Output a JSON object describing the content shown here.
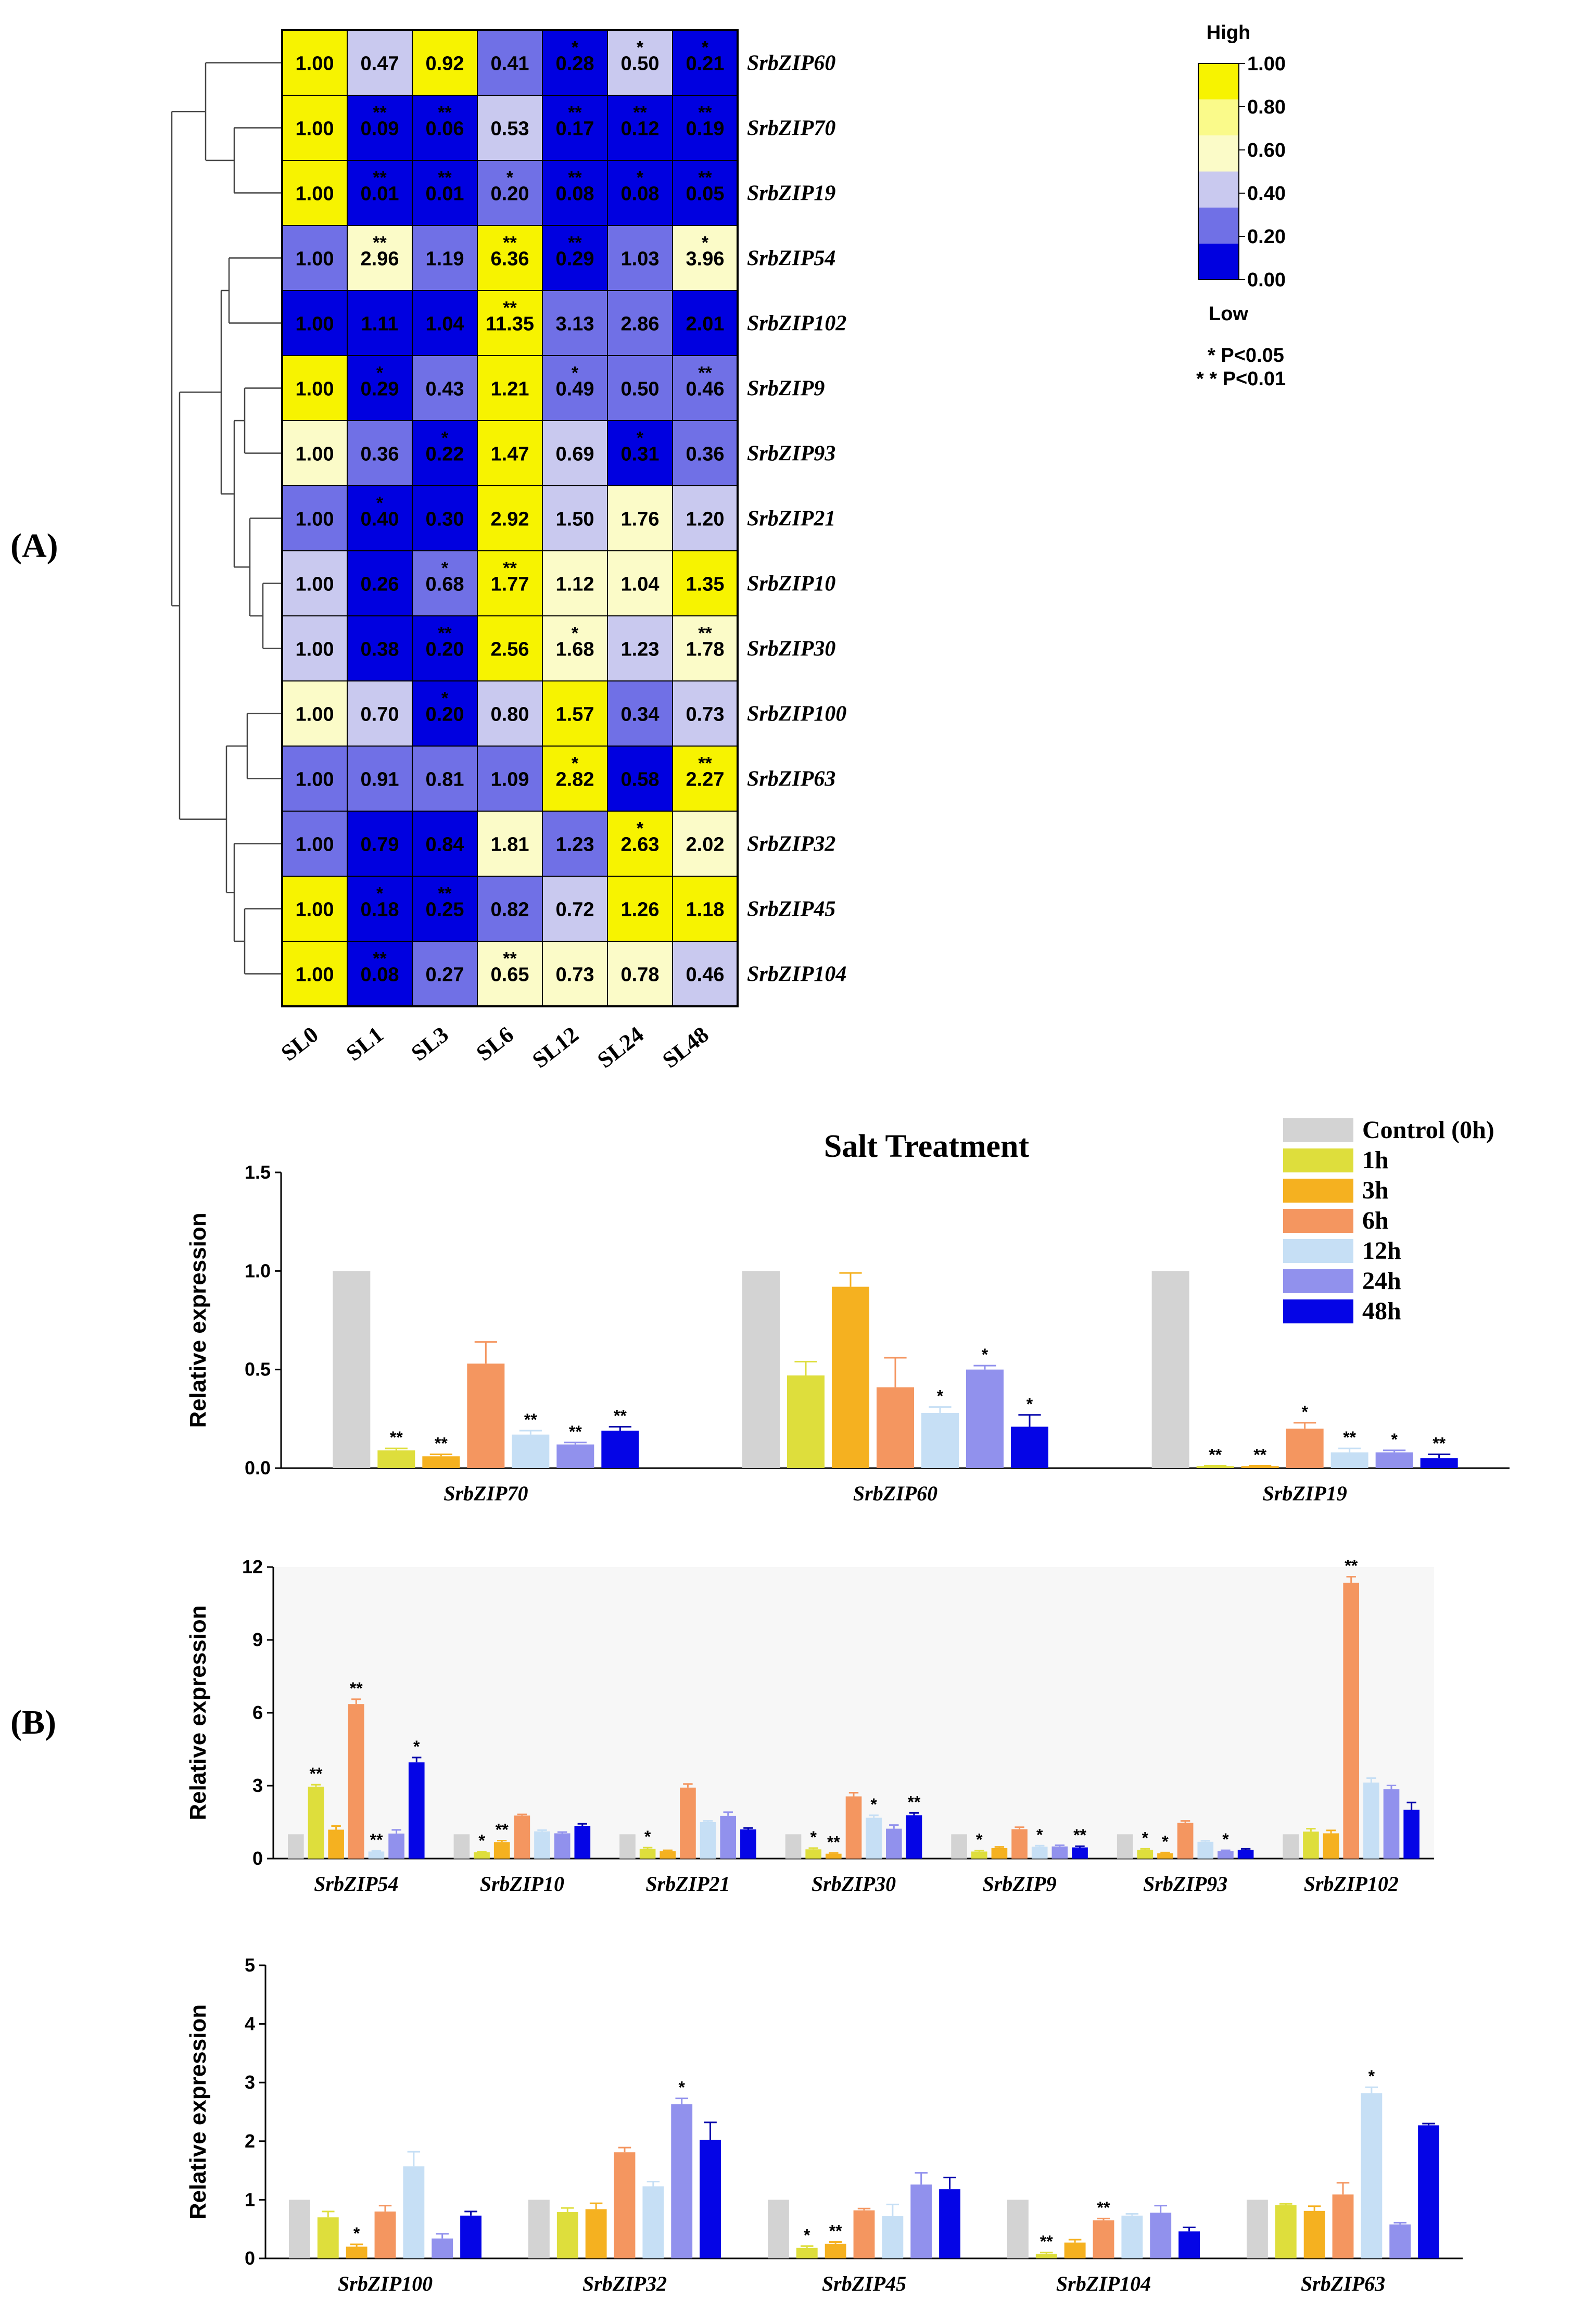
{
  "panels": {
    "a": "(A)",
    "b": "(B)"
  },
  "heatmap": {
    "columns": [
      "SL0",
      "SL1",
      "SL3",
      "SL6",
      "SL12",
      "SL24",
      "SL48"
    ],
    "rows": [
      {
        "gene": "SrbZIP60",
        "values": [
          "1.00",
          "0.47",
          "0.92",
          "0.41",
          "0.28",
          "0.50",
          "0.21"
        ],
        "sig": [
          "",
          "",
          "",
          "",
          "*",
          "*",
          "*"
        ]
      },
      {
        "gene": "SrbZIP70",
        "values": [
          "1.00",
          "0.09",
          "0.06",
          "0.53",
          "0.17",
          "0.12",
          "0.19"
        ],
        "sig": [
          "",
          "**",
          "**",
          "",
          "**",
          "**",
          "**"
        ]
      },
      {
        "gene": "SrbZIP19",
        "values": [
          "1.00",
          "0.01",
          "0.01",
          "0.20",
          "0.08",
          "0.08",
          "0.05"
        ],
        "sig": [
          "",
          "**",
          "**",
          "*",
          "**",
          "*",
          "**"
        ]
      },
      {
        "gene": "SrbZIP54",
        "values": [
          "1.00",
          "2.96",
          "1.19",
          "6.36",
          "0.29",
          "1.03",
          "3.96"
        ],
        "sig": [
          "",
          "**",
          "",
          "**",
          "**",
          "",
          "*"
        ]
      },
      {
        "gene": "SrbZIP102",
        "values": [
          "1.00",
          "1.11",
          "1.04",
          "11.35",
          "3.13",
          "2.86",
          "2.01"
        ],
        "sig": [
          "",
          "",
          "",
          "**",
          "",
          "",
          ""
        ]
      },
      {
        "gene": "SrbZIP9",
        "values": [
          "1.00",
          "0.29",
          "0.43",
          "1.21",
          "0.49",
          "0.50",
          "0.46"
        ],
        "sig": [
          "",
          "*",
          "",
          "",
          "*",
          "",
          "**"
        ]
      },
      {
        "gene": "SrbZIP93",
        "values": [
          "1.00",
          "0.36",
          "0.22",
          "1.47",
          "0.69",
          "0.31",
          "0.36"
        ],
        "sig": [
          "",
          "",
          "*",
          "",
          "",
          "*",
          ""
        ]
      },
      {
        "gene": "SrbZIP21",
        "values": [
          "1.00",
          "0.40",
          "0.30",
          "2.92",
          "1.50",
          "1.76",
          "1.20"
        ],
        "sig": [
          "",
          "*",
          "",
          "",
          "",
          "",
          ""
        ]
      },
      {
        "gene": "SrbZIP10",
        "values": [
          "1.00",
          "0.26",
          "0.68",
          "1.77",
          "1.12",
          "1.04",
          "1.35"
        ],
        "sig": [
          "",
          "",
          "*",
          "**",
          "",
          "",
          ""
        ]
      },
      {
        "gene": "SrbZIP30",
        "values": [
          "1.00",
          "0.38",
          "0.20",
          "2.56",
          "1.68",
          "1.23",
          "1.78"
        ],
        "sig": [
          "",
          "",
          "**",
          "",
          "*",
          "",
          "**"
        ]
      },
      {
        "gene": "SrbZIP100",
        "values": [
          "1.00",
          "0.70",
          "0.20",
          "0.80",
          "1.57",
          "0.34",
          "0.73"
        ],
        "sig": [
          "",
          "",
          "*",
          "",
          "",
          "",
          ""
        ]
      },
      {
        "gene": "SrbZIP63",
        "values": [
          "1.00",
          "0.91",
          "0.81",
          "1.09",
          "2.82",
          "0.58",
          "2.27"
        ],
        "sig": [
          "",
          "",
          "",
          "",
          "*",
          "",
          "**"
        ]
      },
      {
        "gene": "SrbZIP32",
        "values": [
          "1.00",
          "0.79",
          "0.84",
          "1.81",
          "1.23",
          "2.63",
          "2.02"
        ],
        "sig": [
          "",
          "",
          "",
          "",
          "",
          "*",
          ""
        ]
      },
      {
        "gene": "SrbZIP45",
        "values": [
          "1.00",
          "0.18",
          "0.25",
          "0.82",
          "0.72",
          "1.26",
          "1.18"
        ],
        "sig": [
          "",
          "*",
          "**",
          "",
          "",
          "",
          ""
        ]
      },
      {
        "gene": "SrbZIP104",
        "values": [
          "1.00",
          "0.08",
          "0.27",
          "0.65",
          "0.73",
          "0.78",
          "0.46"
        ],
        "sig": [
          "",
          "**",
          "",
          "**",
          "",
          "",
          ""
        ]
      }
    ],
    "cell_colors": [
      [
        "#f7f300",
        "#c9c9ef",
        "#f7f300",
        "#7070e6",
        "#0000e0",
        "#c9c9ef",
        "#0000e0"
      ],
      [
        "#f7f300",
        "#0000e0",
        "#0000e0",
        "#c9c9ef",
        "#0000e0",
        "#0000e0",
        "#0000e0"
      ],
      [
        "#f7f300",
        "#0000e0",
        "#0000e0",
        "#7070e6",
        "#0000e0",
        "#0000e0",
        "#0000e0"
      ],
      [
        "#7070e6",
        "#fbfbc8",
        "#7070e6",
        "#f7f300",
        "#0000e0",
        "#7070e6",
        "#fbfbc8"
      ],
      [
        "#0000e0",
        "#0000e0",
        "#0000e0",
        "#f7f300",
        "#7070e6",
        "#7070e6",
        "#0000e0"
      ],
      [
        "#f7f300",
        "#0000e0",
        "#7070e6",
        "#f7f300",
        "#7070e6",
        "#7070e6",
        "#7070e6"
      ],
      [
        "#fbfbc8",
        "#7070e6",
        "#0000e0",
        "#f7f300",
        "#c9c9ef",
        "#0000e0",
        "#7070e6"
      ],
      [
        "#7070e6",
        "#0000e0",
        "#0000e0",
        "#f7f300",
        "#c9c9ef",
        "#fbfbc8",
        "#c9c9ef"
      ],
      [
        "#c9c9ef",
        "#0000e0",
        "#7070e6",
        "#f7f300",
        "#fbfbc8",
        "#fbfbc8",
        "#f7f300"
      ],
      [
        "#c9c9ef",
        "#0000e0",
        "#0000e0",
        "#f7f300",
        "#fbfbc8",
        "#c9c9ef",
        "#fbfbc8"
      ],
      [
        "#fbfbc8",
        "#c9c9ef",
        "#0000e0",
        "#c9c9ef",
        "#f7f300",
        "#7070e6",
        "#c9c9ef"
      ],
      [
        "#7070e6",
        "#7070e6",
        "#7070e6",
        "#7070e6",
        "#f7f300",
        "#0000e0",
        "#f7f300"
      ],
      [
        "#7070e6",
        "#0000e0",
        "#0000e0",
        "#fbfbc8",
        "#7070e6",
        "#f7f300",
        "#fbfbc8"
      ],
      [
        "#f7f300",
        "#0000e0",
        "#0000e0",
        "#7070e6",
        "#c9c9ef",
        "#f7f300",
        "#f7f300"
      ],
      [
        "#f7f300",
        "#0000e0",
        "#7070e6",
        "#fbfbc8",
        "#fbfbc8",
        "#fbfbc8",
        "#c9c9ef"
      ]
    ],
    "legend": {
      "high": "High",
      "low": "Low",
      "ticks": [
        "1.00",
        "0.80",
        "0.60",
        "0.40",
        "0.20",
        "0.00"
      ],
      "colors": [
        "#f7f300",
        "#fafa8a",
        "#fbfbc8",
        "#c9c9ef",
        "#7070e6",
        "#0000e0"
      ],
      "p_lines": [
        "* P<0.05",
        "* * P<0.01"
      ]
    }
  },
  "chart_data": [
    {
      "type": "bar",
      "title": "Salt Treatment",
      "ylabel": "Relative expression",
      "ylim": [
        0,
        1.5
      ],
      "yticks": [
        "0.0",
        "0.5",
        "1.0",
        "1.5"
      ],
      "categories": [
        "SrbZIP70",
        "SrbZIP60",
        "SrbZIP19"
      ],
      "series": [
        {
          "name": "Control (0h)",
          "color": "#d3d3d3",
          "values": [
            1.0,
            1.0,
            1.0
          ],
          "err": [
            0,
            0,
            0
          ],
          "sig": [
            "",
            "",
            ""
          ]
        },
        {
          "name": "1h",
          "color": "#dede3c",
          "values": [
            0.09,
            0.47,
            0.01
          ],
          "err": [
            0.01,
            0.07,
            0.002
          ],
          "sig": [
            "**",
            "",
            "**"
          ]
        },
        {
          "name": "3h",
          "color": "#f5b120",
          "values": [
            0.06,
            0.92,
            0.01
          ],
          "err": [
            0.01,
            0.07,
            0.002
          ],
          "sig": [
            "**",
            "",
            "**"
          ]
        },
        {
          "name": "6h",
          "color": "#f49660",
          "values": [
            0.53,
            0.41,
            0.2
          ],
          "err": [
            0.11,
            0.15,
            0.03
          ],
          "sig": [
            "",
            "",
            "*"
          ]
        },
        {
          "name": "12h",
          "color": "#c6dff5",
          "values": [
            0.17,
            0.28,
            0.08
          ],
          "err": [
            0.02,
            0.03,
            0.02
          ],
          "sig": [
            "**",
            "*",
            "**"
          ]
        },
        {
          "name": "24h",
          "color": "#9191ed",
          "values": [
            0.12,
            0.5,
            0.08
          ],
          "err": [
            0.01,
            0.02,
            0.01
          ],
          "sig": [
            "**",
            "*",
            "*"
          ]
        },
        {
          "name": "48h",
          "color": "#0505e6",
          "values": [
            0.19,
            0.21,
            0.05
          ],
          "err": [
            0.02,
            0.06,
            0.02
          ],
          "sig": [
            "**",
            "*",
            "**"
          ]
        }
      ]
    },
    {
      "type": "bar",
      "ylabel": "Relative expression",
      "ylim": [
        0,
        12
      ],
      "yticks": [
        "0",
        "3",
        "6",
        "9",
        "12"
      ],
      "categories": [
        "SrbZIP54",
        "SrbZIP10",
        "SrbZIP21",
        "SrbZIP30",
        "SrbZIP9",
        "SrbZIP93",
        "SrbZIP102"
      ],
      "series": [
        {
          "name": "Control (0h)",
          "color": "#d3d3d3",
          "values": [
            1,
            1,
            1,
            1,
            1,
            1,
            1
          ],
          "err": [
            0,
            0,
            0,
            0,
            0,
            0,
            0
          ],
          "sig": [
            "",
            "",
            "",
            "",
            "",
            "",
            ""
          ]
        },
        {
          "name": "1h",
          "color": "#dede3c",
          "values": [
            2.96,
            0.26,
            0.4,
            0.38,
            0.29,
            0.36,
            1.11
          ],
          "err": [
            0.08,
            0.03,
            0.05,
            0.05,
            0.04,
            0.04,
            0.12
          ],
          "sig": [
            "**",
            "*",
            "*",
            "*",
            "*",
            "*",
            ""
          ]
        },
        {
          "name": "3h",
          "color": "#f5b120",
          "values": [
            1.19,
            0.68,
            0.3,
            0.2,
            0.43,
            0.22,
            1.04
          ],
          "err": [
            0.15,
            0.06,
            0.04,
            0.03,
            0.05,
            0.03,
            0.12
          ],
          "sig": [
            "",
            "**",
            "",
            "**",
            "",
            "*",
            ""
          ]
        },
        {
          "name": "6h",
          "color": "#f49660",
          "values": [
            6.36,
            1.77,
            2.92,
            2.56,
            1.21,
            1.47,
            11.35
          ],
          "err": [
            0.2,
            0.05,
            0.15,
            0.15,
            0.08,
            0.08,
            0.25
          ],
          "sig": [
            "**",
            "",
            "",
            "",
            "",
            "",
            "**"
          ]
        },
        {
          "name": "12h",
          "color": "#c6dff5",
          "values": [
            0.29,
            1.12,
            1.5,
            1.68,
            0.49,
            0.69,
            3.13
          ],
          "err": [
            0.03,
            0.05,
            0.05,
            0.1,
            0.04,
            0.04,
            0.18
          ],
          "sig": [
            "**",
            "",
            "",
            "*",
            "*",
            "",
            ""
          ]
        },
        {
          "name": "24h",
          "color": "#9191ed",
          "values": [
            1.03,
            1.04,
            1.76,
            1.23,
            0.5,
            0.31,
            2.86
          ],
          "err": [
            0.15,
            0.05,
            0.15,
            0.15,
            0.05,
            0.03,
            0.15
          ],
          "sig": [
            "",
            "",
            "",
            "",
            "",
            "*",
            ""
          ]
        },
        {
          "name": "48h",
          "color": "#0505e6",
          "values": [
            3.96,
            1.35,
            1.2,
            1.78,
            0.46,
            0.36,
            2.01
          ],
          "err": [
            0.2,
            0.08,
            0.06,
            0.1,
            0.05,
            0.04,
            0.3
          ],
          "sig": [
            "*",
            "",
            "",
            "**",
            "**",
            "",
            ""
          ]
        }
      ]
    },
    {
      "type": "bar",
      "ylabel": "Relative expression",
      "ylim": [
        0,
        5
      ],
      "yticks": [
        "0",
        "1",
        "2",
        "3",
        "4",
        "5"
      ],
      "categories": [
        "SrbZIP100",
        "SrbZIP32",
        "SrbZIP45",
        "SrbZIP104",
        "SrbZIP63"
      ],
      "series": [
        {
          "name": "Control (0h)",
          "color": "#d3d3d3",
          "values": [
            1,
            1,
            1,
            1,
            1
          ],
          "err": [
            0,
            0,
            0,
            0,
            0
          ],
          "sig": [
            "",
            "",
            "",
            "",
            ""
          ]
        },
        {
          "name": "1h",
          "color": "#dede3c",
          "values": [
            0.7,
            0.79,
            0.18,
            0.08,
            0.91
          ],
          "err": [
            0.1,
            0.07,
            0.03,
            0.02,
            0.02
          ],
          "sig": [
            "",
            "",
            "*",
            "**",
            ""
          ]
        },
        {
          "name": "3h",
          "color": "#f5b120",
          "values": [
            0.2,
            0.84,
            0.25,
            0.27,
            0.81
          ],
          "err": [
            0.04,
            0.1,
            0.03,
            0.05,
            0.08
          ],
          "sig": [
            "*",
            "",
            "**",
            "",
            ""
          ]
        },
        {
          "name": "6h",
          "color": "#f49660",
          "values": [
            0.8,
            1.81,
            0.82,
            0.65,
            1.09
          ],
          "err": [
            0.1,
            0.08,
            0.03,
            0.03,
            0.2
          ],
          "sig": [
            "",
            "",
            "",
            "**",
            ""
          ]
        },
        {
          "name": "12h",
          "color": "#c6dff5",
          "values": [
            1.57,
            1.23,
            0.72,
            0.73,
            2.82
          ],
          "err": [
            0.25,
            0.08,
            0.2,
            0.03,
            0.1
          ],
          "sig": [
            "",
            "",
            "",
            "",
            "*"
          ]
        },
        {
          "name": "24h",
          "color": "#9191ed",
          "values": [
            0.34,
            2.63,
            1.26,
            0.78,
            0.58
          ],
          "err": [
            0.08,
            0.1,
            0.2,
            0.12,
            0.03
          ],
          "sig": [
            "",
            "*",
            "",
            "",
            ""
          ]
        },
        {
          "name": "48h",
          "color": "#0505e6",
          "values": [
            0.73,
            2.02,
            1.18,
            0.46,
            2.27
          ],
          "err": [
            0.07,
            0.3,
            0.2,
            0.07,
            0.03
          ],
          "sig": [
            "",
            "",
            "",
            "",
            ""
          ]
        }
      ]
    }
  ]
}
